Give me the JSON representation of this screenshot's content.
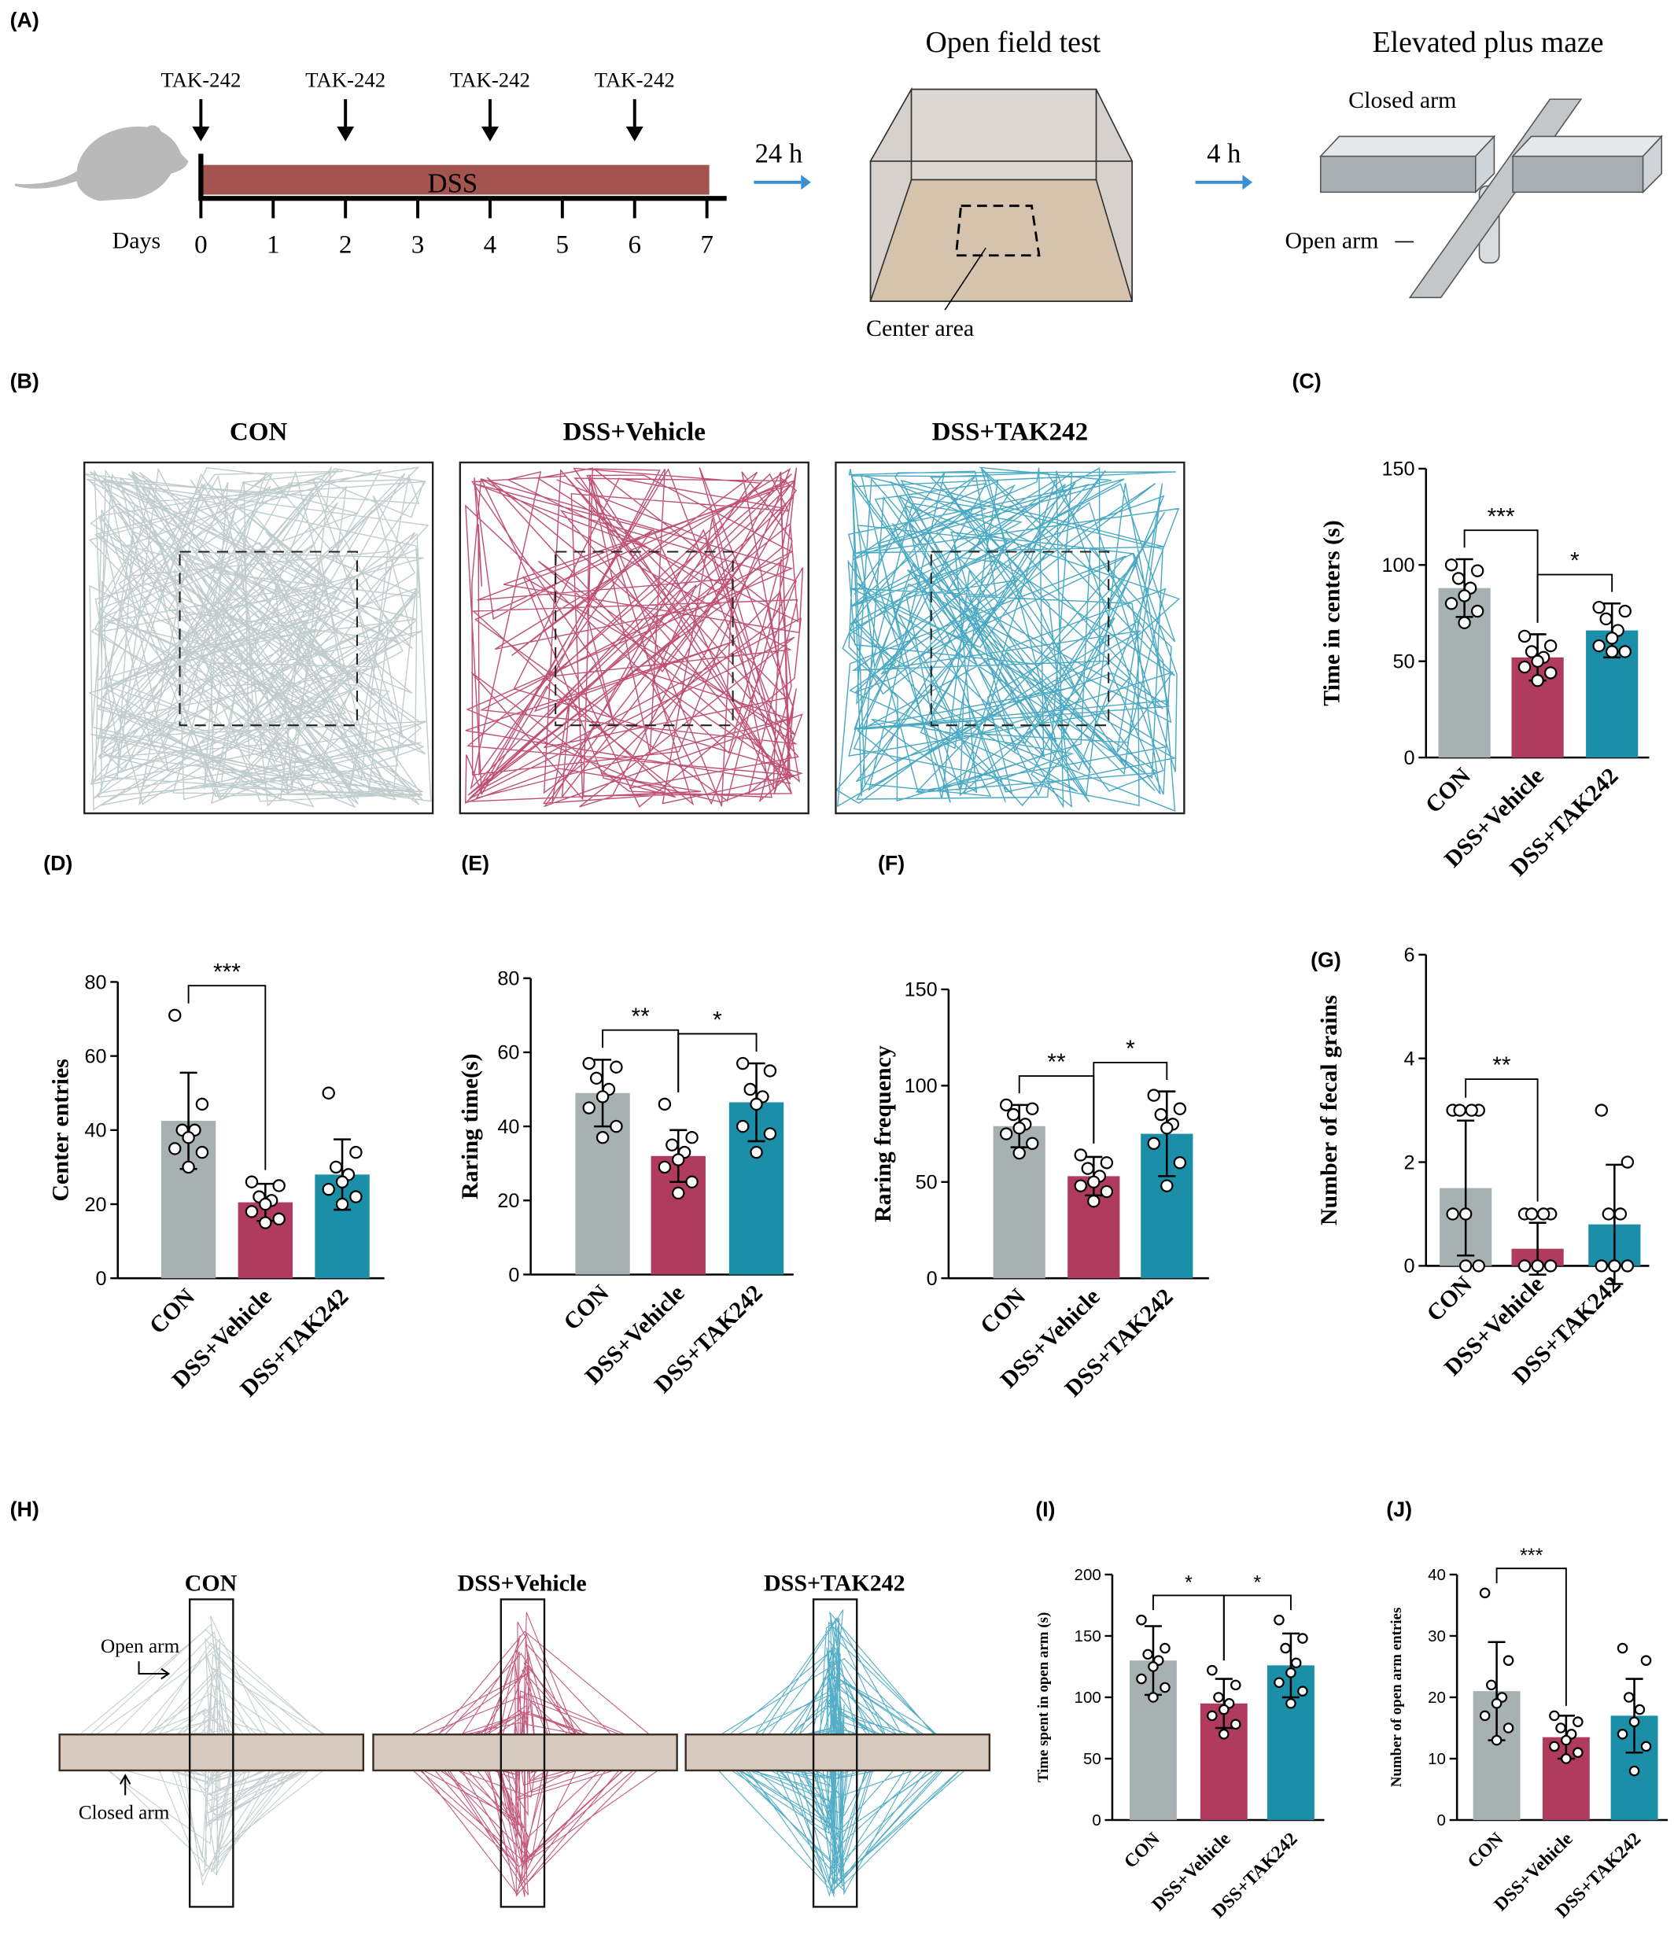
{
  "panel_labels": [
    "(A)",
    "(B)",
    "(C)",
    "(D)",
    "(E)",
    "(F)",
    "(G)",
    "(H)",
    "(I)",
    "(J)"
  ],
  "timeline": {
    "treatment": "TAK-242",
    "treatment_days": [
      0,
      2,
      4,
      6
    ],
    "bar_label": "DSS",
    "axis_label": "Days",
    "days": [
      0,
      1,
      2,
      3,
      4,
      5,
      6,
      7
    ]
  },
  "open_field": {
    "interval": "24 h",
    "title": "Open field test",
    "center_label": "Center area"
  },
  "plus_maze": {
    "interval": "4 h",
    "title": "Elevated plus maze",
    "closed_label": "Closed arm",
    "open_label": "Open arm"
  },
  "groups": [
    "CON",
    "DSS+Vehicle",
    "DSS+TAK242"
  ],
  "maze_tracks": {
    "open_label": "Open arm",
    "closed_label": "Closed arm"
  },
  "chart_data": [
    {
      "type": "bar",
      "ylabel": "Time in centers (s)",
      "categories": [
        "CON",
        "DSS+Vehicle",
        "DSS+TAK242"
      ],
      "colors": [
        "#a8b1b1",
        "#b13b5f",
        "#1a8fa7"
      ],
      "values": [
        88,
        52,
        66
      ],
      "errors": [
        15,
        12,
        14
      ],
      "points": [
        [
          100,
          97,
          93,
          88,
          84,
          80,
          76,
          70
        ],
        [
          63,
          58,
          55,
          52,
          50,
          47,
          44,
          40
        ],
        [
          78,
          76,
          72,
          66,
          62,
          58,
          55,
          55
        ]
      ],
      "ylim": [
        0,
        150
      ],
      "yticks": [
        0,
        50,
        100,
        150
      ],
      "significance": [
        {
          "from": 0,
          "to": 1,
          "label": "***"
        },
        {
          "from": 1,
          "to": 2,
          "label": "*"
        }
      ]
    },
    {
      "type": "bar",
      "ylabel": "Center entries",
      "categories": [
        "CON",
        "DSS+Vehicle",
        "DSS+TAK242"
      ],
      "colors": [
        "#a8b1b1",
        "#b13b5f",
        "#1a8fa7"
      ],
      "values": [
        42.5,
        20.5,
        28
      ],
      "errors": [
        13,
        5,
        9.5
      ],
      "points": [
        [
          71,
          47,
          40,
          40,
          38,
          35,
          34,
          30
        ],
        [
          26,
          25,
          22,
          21,
          20,
          18,
          16,
          15
        ],
        [
          50,
          34,
          30,
          28,
          26,
          24,
          22,
          20
        ]
      ],
      "ylim": [
        0,
        80
      ],
      "yticks": [
        0,
        20,
        40,
        60,
        80
      ],
      "significance": [
        {
          "from": 0,
          "to": 1,
          "label": "***"
        }
      ]
    },
    {
      "type": "bar",
      "ylabel": "Raring time(s)",
      "categories": [
        "CON",
        "DSS+Vehicle",
        "DSS+TAK242"
      ],
      "colors": [
        "#a8b1b1",
        "#b13b5f",
        "#1a8fa7"
      ],
      "values": [
        49,
        32,
        46.5
      ],
      "errors": [
        9,
        7,
        10.5
      ],
      "points": [
        [
          57,
          56,
          53,
          50,
          48,
          45,
          40,
          37
        ],
        [
          46,
          37,
          35,
          33,
          31,
          29,
          25,
          22
        ],
        [
          57,
          55,
          50,
          48,
          46,
          40,
          38,
          33
        ]
      ],
      "ylim": [
        0,
        80
      ],
      "yticks": [
        0,
        20,
        40,
        60,
        80
      ],
      "significance": [
        {
          "from": 0,
          "to": 1,
          "label": "**"
        },
        {
          "from": 1,
          "to": 2,
          "label": "*"
        }
      ]
    },
    {
      "type": "bar",
      "ylabel": "Raring frequency",
      "categories": [
        "CON",
        "DSS+Vehicle",
        "DSS+TAK242"
      ],
      "colors": [
        "#a8b1b1",
        "#b13b5f",
        "#1a8fa7"
      ],
      "values": [
        79,
        53,
        75
      ],
      "errors": [
        11,
        10,
        22
      ],
      "points": [
        [
          90,
          88,
          85,
          80,
          78,
          75,
          70,
          65
        ],
        [
          64,
          60,
          57,
          53,
          50,
          48,
          45,
          40
        ],
        [
          95,
          88,
          85,
          80,
          78,
          70,
          60,
          48
        ]
      ],
      "ylim": [
        0,
        150
      ],
      "yticks": [
        0,
        50,
        100,
        150
      ],
      "significance": [
        {
          "from": 0,
          "to": 1,
          "label": "**"
        },
        {
          "from": 1,
          "to": 2,
          "label": "*"
        }
      ]
    },
    {
      "type": "bar",
      "ylabel": "Number of fecal grains",
      "categories": [
        "CON",
        "DSS+Vehicle",
        "DSS+TAK242"
      ],
      "colors": [
        "#a8b1b1",
        "#b13b5f",
        "#1a8fa7"
      ],
      "values": [
        1.5,
        0.33,
        0.8
      ],
      "errors": [
        1.3,
        0.5,
        1.15
      ],
      "points": [
        [
          3,
          3,
          3,
          3,
          1,
          1,
          0,
          0
        ],
        [
          1,
          1,
          1,
          1,
          0,
          0,
          0,
          0
        ],
        [
          3,
          2,
          1,
          1,
          0,
          0,
          0,
          0
        ]
      ],
      "ylim": [
        0,
        6
      ],
      "yticks": [
        0,
        2,
        4,
        6
      ],
      "significance": [
        {
          "from": 0,
          "to": 1,
          "label": "**"
        }
      ]
    },
    {
      "type": "bar",
      "ylabel": "Time spent in open arm (s)",
      "categories": [
        "CON",
        "DSS+Vehicle",
        "DSS+TAK242"
      ],
      "colors": [
        "#a8b1b1",
        "#b13b5f",
        "#1a8fa7"
      ],
      "values": [
        130,
        95,
        126
      ],
      "errors": [
        28,
        20,
        26
      ],
      "points": [
        [
          163,
          140,
          135,
          130,
          125,
          115,
          108,
          100
        ],
        [
          122,
          110,
          100,
          95,
          90,
          85,
          78,
          70
        ],
        [
          163,
          148,
          140,
          128,
          120,
          112,
          105,
          95
        ]
      ],
      "ylim": [
        0,
        200
      ],
      "yticks": [
        0,
        50,
        100,
        150,
        200
      ],
      "significance": [
        {
          "from": 0,
          "to": 1,
          "label": "*"
        },
        {
          "from": 1,
          "to": 2,
          "label": "*"
        }
      ]
    },
    {
      "type": "bar",
      "ylabel": "Number of open arm entries",
      "categories": [
        "CON",
        "DSS+Vehicle",
        "DSS+TAK242"
      ],
      "colors": [
        "#a8b1b1",
        "#b13b5f",
        "#1a8fa7"
      ],
      "values": [
        21,
        13.5,
        17
      ],
      "errors": [
        8,
        3.5,
        6
      ],
      "points": [
        [
          37,
          26,
          22,
          20,
          19,
          17,
          15,
          13
        ],
        [
          17,
          16,
          15,
          14,
          13,
          12,
          11,
          10
        ],
        [
          28,
          26,
          20,
          18,
          16,
          14,
          12,
          8
        ]
      ],
      "ylim": [
        0,
        40
      ],
      "yticks": [
        0,
        10,
        20,
        30,
        40
      ],
      "significance": [
        {
          "from": 0,
          "to": 1,
          "label": "***"
        }
      ]
    }
  ]
}
